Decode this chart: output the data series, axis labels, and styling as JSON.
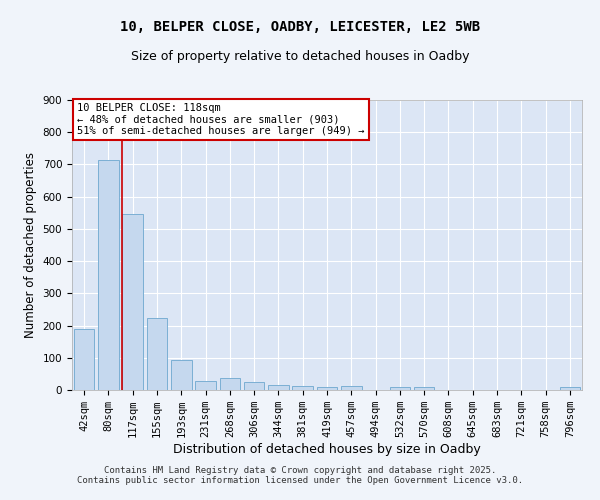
{
  "title_line1": "10, BELPER CLOSE, OADBY, LEICESTER, LE2 5WB",
  "title_line2": "Size of property relative to detached houses in Oadby",
  "xlabel": "Distribution of detached houses by size in Oadby",
  "ylabel": "Number of detached properties",
  "categories": [
    "42sqm",
    "80sqm",
    "117sqm",
    "155sqm",
    "193sqm",
    "231sqm",
    "268sqm",
    "306sqm",
    "344sqm",
    "381sqm",
    "419sqm",
    "457sqm",
    "494sqm",
    "532sqm",
    "570sqm",
    "608sqm",
    "645sqm",
    "683sqm",
    "721sqm",
    "758sqm",
    "796sqm"
  ],
  "values": [
    188,
    715,
    545,
    225,
    93,
    27,
    38,
    25,
    17,
    12,
    10,
    12,
    0,
    8,
    8,
    0,
    0,
    0,
    0,
    0,
    8
  ],
  "bar_color": "#c5d8ee",
  "bar_edge_color": "#7bafd4",
  "vline_x_index": 2,
  "vline_color": "#cc0000",
  "annotation_text": "10 BELPER CLOSE: 118sqm\n← 48% of detached houses are smaller (903)\n51% of semi-detached houses are larger (949) →",
  "annotation_box_color": "#ffffff",
  "annotation_box_edge": "#cc0000",
  "ylim": [
    0,
    900
  ],
  "yticks": [
    0,
    100,
    200,
    300,
    400,
    500,
    600,
    700,
    800,
    900
  ],
  "background_color": "#dce6f5",
  "grid_color": "#ffffff",
  "footer_line1": "Contains HM Land Registry data © Crown copyright and database right 2025.",
  "footer_line2": "Contains public sector information licensed under the Open Government Licence v3.0.",
  "title_fontsize": 10,
  "subtitle_fontsize": 9,
  "axis_label_fontsize": 8.5,
  "tick_fontsize": 7.5,
  "annotation_fontsize": 7.5,
  "footer_fontsize": 6.5
}
